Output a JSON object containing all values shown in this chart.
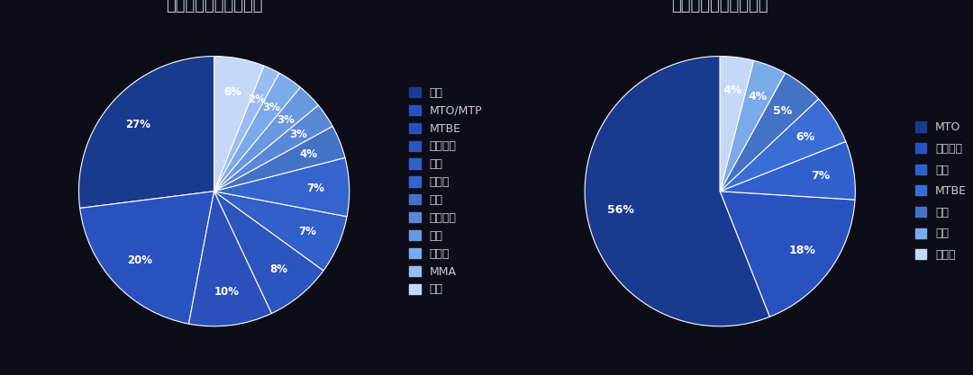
{
  "chart1": {
    "title": "全球甲醇下游需求占比",
    "labels": [
      "甲醛",
      "MTO/MTP",
      "MTBE",
      "汽油调和",
      "醋酸",
      "二甲醚",
      "溶剂",
      "生物柴油",
      "甲胺",
      "氯甲烷",
      "MMA",
      "其他"
    ],
    "values": [
      27,
      20,
      10,
      8,
      7,
      7,
      4,
      3,
      3,
      3,
      2,
      6
    ],
    "colors": [
      "#1a3a8f",
      "#2a52be",
      "#2b50bb",
      "#2c55be",
      "#3060c8",
      "#3565cc",
      "#4472c4",
      "#5a88d8",
      "#6a98e0",
      "#7aaae8",
      "#9bbcf0",
      "#c5d8f8"
    ],
    "legend_labels": [
      "甲醛",
      "MTO/MTP",
      "MTBE",
      "汽油调和",
      "醋酸",
      "二甲醚",
      "溶剂",
      "生物柴油",
      "甲胺",
      "氯甲烷",
      "MMA",
      "其他"
    ]
  },
  "chart2": {
    "title": "中国甲醇下游需求占比",
    "labels": [
      "MTO",
      "甲醇燃料",
      "甲醛",
      "MTBE",
      "醋酸",
      "其他",
      "二甲醚"
    ],
    "values": [
      56,
      18,
      7,
      6,
      5,
      4,
      4
    ],
    "colors": [
      "#1a3a8f",
      "#2a52be",
      "#3060cc",
      "#3a6ed4",
      "#4472c4",
      "#7aaae8",
      "#c5d8f8"
    ],
    "legend_labels": [
      "MTO",
      "甲醇燃料",
      "甲醛",
      "MTBE",
      "醋酸",
      "其他",
      "二甲醚"
    ]
  },
  "bg_color": "#0d0d1a",
  "text_color": "#ffffff",
  "title_color": "#cccccc",
  "legend_text_color": "#cccccc",
  "title_fontsize": 13,
  "legend_fontsize": 9,
  "pct_fontsize": 8.5
}
